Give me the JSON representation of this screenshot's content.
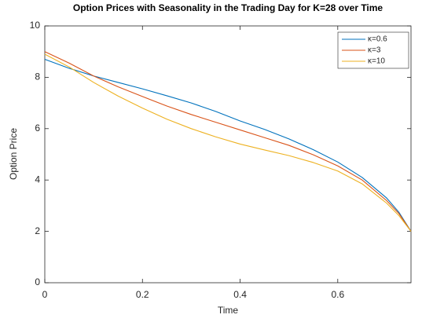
{
  "chart_data": {
    "type": "line",
    "title": "Option Prices with Seasonality in the Trading Day for K=28 over Time",
    "xlabel": "Time",
    "ylabel": "Option Price",
    "x": [
      0,
      0.05,
      0.1,
      0.15,
      0.2,
      0.25,
      0.3,
      0.35,
      0.4,
      0.45,
      0.5,
      0.55,
      0.6,
      0.65,
      0.7,
      0.725,
      0.75
    ],
    "series": [
      {
        "name": "κ=0.6",
        "color": "#0072bd",
        "values": [
          8.7,
          8.35,
          8.05,
          7.8,
          7.55,
          7.28,
          7.0,
          6.67,
          6.3,
          5.97,
          5.6,
          5.18,
          4.7,
          4.1,
          3.3,
          2.75,
          2.0
        ]
      },
      {
        "name": "κ=3",
        "color": "#d95319",
        "values": [
          9.0,
          8.55,
          8.05,
          7.63,
          7.25,
          6.88,
          6.55,
          6.25,
          5.95,
          5.65,
          5.35,
          4.98,
          4.55,
          4.0,
          3.2,
          2.7,
          2.0
        ]
      },
      {
        "name": "κ=10",
        "color": "#edb120",
        "values": [
          8.9,
          8.4,
          7.8,
          7.27,
          6.8,
          6.37,
          6.0,
          5.68,
          5.4,
          5.17,
          4.95,
          4.68,
          4.35,
          3.85,
          3.1,
          2.62,
          2.0
        ]
      }
    ],
    "xlim": [
      0,
      0.75
    ],
    "ylim": [
      0,
      10
    ],
    "xticks": [
      0,
      0.2,
      0.4,
      0.6
    ],
    "yticks": [
      0,
      2,
      4,
      6,
      8,
      10
    ],
    "legend": "northeast",
    "grid": false
  }
}
